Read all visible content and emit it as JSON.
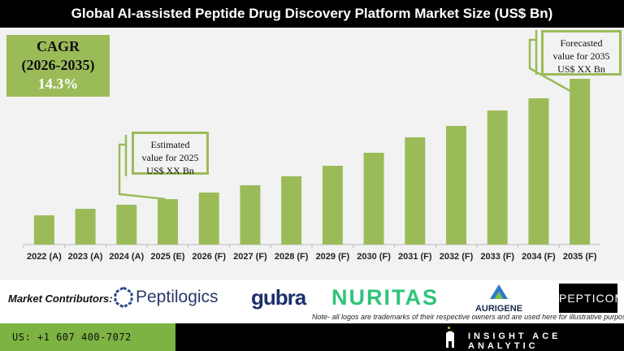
{
  "header": {
    "title": "Global AI-assisted Peptide Drug Discovery Platform Market Size (US$ Bn)"
  },
  "cagr": {
    "label": "CAGR",
    "period": "(2026-2035)",
    "value": "14.3%"
  },
  "callouts": {
    "estimated": {
      "line1": "Estimated",
      "line2": "value for 2025",
      "line3": "US$ XX Bn"
    },
    "forecasted": {
      "line1": "Forecasted",
      "line2": "value for 2035",
      "line3": "US$ XX Bn"
    }
  },
  "chart_data": {
    "type": "bar",
    "title": "Global AI-assisted Peptide Drug Discovery Platform Market Size (US$ Bn)",
    "categories": [
      "2022 (A)",
      "2023 (A)",
      "2024 (A)",
      "2025 (E)",
      "2026 (F)",
      "2027 (F)",
      "2028 (F)",
      "2029 (F)",
      "2030 (F)",
      "2031 (F)",
      "2032 (F)",
      "2033 (F)",
      "2034 (F)",
      "2035 (F)"
    ],
    "values": [
      36,
      44,
      49,
      56,
      64,
      73,
      84,
      97,
      113,
      132,
      146,
      165,
      180,
      204
    ],
    "values_note": "relative heights only; no axis or values printed",
    "ylim": [
      0,
      210
    ],
    "grid": false,
    "bar_color": "#9bbb59"
  },
  "contributors": {
    "label": "Market Contributors:",
    "logos": [
      "Peptilogics",
      "gubra",
      "NURITAS",
      "AURIGENE",
      "PEPTICOM"
    ],
    "note": "Note- all logos are trademarks of their respective owners and are used here for illustrative purposes"
  },
  "footer": {
    "phone": "US: +1 607 400-7072",
    "brand": "INSIGHT ACE ANALYTIC"
  },
  "colors": {
    "accent": "#9bbb59",
    "footer_green": "#7cb342"
  }
}
